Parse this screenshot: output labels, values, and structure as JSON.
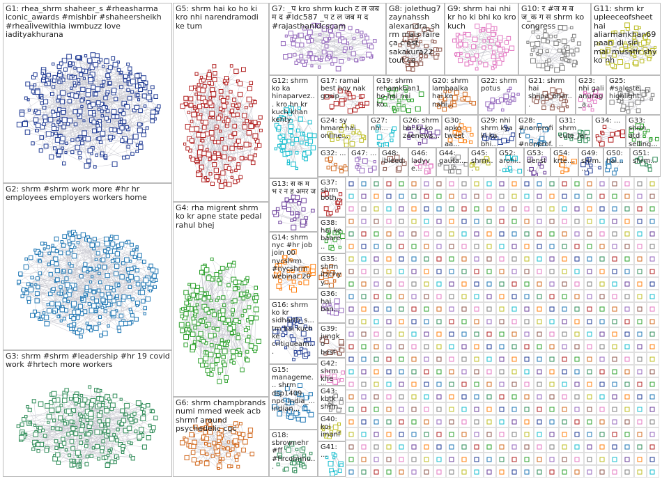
{
  "groups": [
    {
      "label": "G1: rhea_shrm shaheer_s #rheasharma iconic_awards #mishbir #shaheersheikh #rhealivewithia iwmbuzz love iadityakhurana"
    },
    {
      "label": "G2: shrm #shrm work more #hr hr employees employers workers home"
    },
    {
      "label": "G3: shrm #shrm #leadership #hr 19 covid work #hrtech more workers"
    },
    {
      "label": "G5: shrm hai ko ho ki kro nhi narendramodi ke tum"
    },
    {
      "label": "G4: rha migrent shrm ko kr apne state pedal rahul bhej"
    },
    {
      "label": "G6: shrm champbrands numi mmed week acb shrmf around psychedelic cgc"
    },
    {
      "label": "G7: _प kro shrm kuch ट ल जब म द #ldc587 _प ट ल जब म द #rajasthanldcscam"
    },
    {
      "label": "G8: jolethug7 zaynahssh alexandra_shrm mais faire ça c'est sakakura22 tout ce"
    },
    {
      "label": "G9: shrm hai nhi kr ho ki bhi ko kro kuch"
    },
    {
      "label": "G10: र #ज म ब ज_क ग स shrm ko congress"
    },
    {
      "label": "G11: shrm kr upleeceofsheet hai aliarmankhan69 paan_di_siri mai_musafir shy ko nh"
    },
    {
      "label": "G12: shrm ko ka hinaparvez... kro hn kr kuch khan kehty"
    },
    {
      "label": "G13: स क म भ र न ह अमर ज"
    },
    {
      "label": "G14: shrm nyc #hr job join 00 nycshrm #nycshrm webinar 20"
    },
    {
      "label": "G16: shrm ko kr sidharth_s... tm hai kuch ke critiqueam..."
    },
    {
      "label": "G15: manageme... shrm dsp1409 npc_india_... indian..."
    },
    {
      "label": "G18: sbrownehr #ff #hrcommu..."
    },
    {
      "label": "G17: ramai best boy nak gosip"
    },
    {
      "label": "G19: shrm rehamkhan1 ho hai nai ko..."
    },
    {
      "label": "G20: shrm lambaalka hai ke nahi..."
    },
    {
      "label": "G22: shrm potus"
    },
    {
      "label": "G21: shrm hai shilpa_bhar..."
    },
    {
      "label": "G23: nhi gali anurag_a..."
    },
    {
      "label": "G25: #saleste... highlight"
    },
    {
      "label": "G24: sy hmare hai online..."
    },
    {
      "label": "G27: nhi..."
    },
    {
      "label": "G26: shrm bhi kr ko zeenews..."
    },
    {
      "label": "G30: apko tweet aa..."
    },
    {
      "label": "G29: nhi shrm kya ki ka bhi..."
    },
    {
      "label": "G28: #nonprofit #nonprof..."
    },
    {
      "label": "G31: shrm cute_jer..."
    },
    {
      "label": "G34: ..."
    },
    {
      "label": "G33: shrm atd selling..."
    },
    {
      "label": "G32: ..."
    },
    {
      "label": "G47: ..."
    },
    {
      "label": "G48: ibleed..."
    },
    {
      "label": "G46: ladyve..."
    },
    {
      "label": "G44: gauta..."
    },
    {
      "label": "G45: shrm..."
    },
    {
      "label": "G52: arohi..."
    },
    {
      "label": "G53: denst..."
    },
    {
      "label": "G54: krte..."
    },
    {
      "label": "G49: shrm..."
    },
    {
      "label": "G50: hai..."
    },
    {
      "label": "G51: shrm..."
    },
    {
      "label": "G37: shrm both..."
    },
    {
      "label": "G38: hai ke baare..."
    },
    {
      "label": "G35: shrm itzchyy..."
    },
    {
      "label": "G36: hai ban..."
    },
    {
      "label": "G39: jungko best..."
    },
    {
      "label": "G42: shrm khe jii..."
    },
    {
      "label": "G43: kbtk shrm..."
    },
    {
      "label": "G40: koi imanfa..."
    },
    {
      "label": "G41: ..."
    }
  ]
}
